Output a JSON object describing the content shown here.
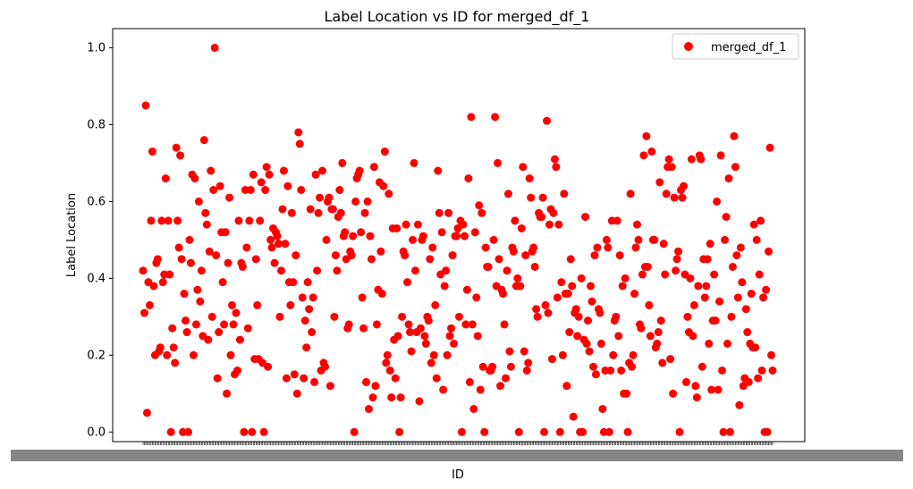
{
  "chart_data": {
    "type": "scatter",
    "title": "Label Location vs ID for merged_df_1",
    "xlabel": "ID",
    "ylabel": "Label Location",
    "ylim": [
      -0.025,
      1.05
    ],
    "yticks": [
      "0.0",
      "0.2",
      "0.4",
      "0.6",
      "0.8",
      "1.0"
    ],
    "grid": false,
    "legend_position": "top-right",
    "point_color": "#ff0000",
    "series": [
      {
        "name": "merged_df_1",
        "y": [
          0.42,
          0.31,
          0.85,
          0.05,
          0.39,
          0.33,
          0.55,
          0.73,
          0.38,
          0.2,
          0.44,
          0.45,
          0.21,
          0.22,
          0.55,
          0.39,
          0.41,
          0.66,
          0.2,
          0.55,
          0.41,
          0.0,
          0.27,
          0.22,
          0.18,
          0.74,
          0.55,
          0.48,
          0.72,
          0.45,
          0.0,
          0.36,
          0.29,
          0.26,
          0.0,
          0.5,
          0.44,
          0.67,
          0.2,
          0.66,
          0.28,
          0.37,
          0.6,
          0.34,
          0.42,
          0.25,
          0.76,
          0.57,
          0.54,
          0.24,
          0.47,
          0.68,
          0.3,
          0.63,
          1.0,
          0.46,
          0.14,
          0.26,
          0.64,
          0.52,
          0.39,
          0.28,
          0.52,
          0.1,
          0.44,
          0.61,
          0.2,
          0.33,
          0.28,
          0.15,
          0.31,
          0.16,
          0.55,
          0.24,
          0.44,
          0.43,
          0.0,
          0.63,
          0.48,
          0.27,
          0.55,
          0.63,
          0.0,
          0.67,
          0.19,
          0.45,
          0.33,
          0.19,
          0.55,
          0.65,
          0.18,
          0.0,
          0.63,
          0.69,
          0.17,
          0.67,
          0.5,
          0.48,
          0.53,
          0.44,
          0.52,
          0.51,
          0.49,
          0.3,
          0.42,
          0.58,
          0.68,
          0.49,
          0.14,
          0.64,
          0.39,
          0.33,
          0.57,
          0.39,
          0.15,
          0.46,
          0.1,
          0.78,
          0.75,
          0.63,
          0.35,
          0.14,
          0.29,
          0.22,
          0.39,
          0.32,
          0.58,
          0.26,
          0.35,
          0.13,
          0.67,
          0.42,
          0.57,
          0.61,
          0.16,
          0.68,
          0.18,
          0.17,
          0.5,
          0.6,
          0.61,
          0.12,
          0.58,
          0.58,
          0.3,
          0.46,
          0.42,
          0.56,
          0.63,
          0.57,
          0.7,
          0.51,
          0.52,
          0.45,
          0.27,
          0.28,
          0.47,
          0.46,
          0.51,
          0.0,
          0.6,
          0.66,
          0.67,
          0.68,
          0.52,
          0.35,
          0.27,
          0.57,
          0.13,
          0.6,
          0.06,
          0.51,
          0.45,
          0.09,
          0.69,
          0.12,
          0.28,
          0.37,
          0.65,
          0.47,
          0.36,
          0.64,
          0.73,
          0.18,
          0.2,
          0.62,
          0.16,
          0.09,
          0.53,
          0.24,
          0.14,
          0.53,
          0.25,
          0.0,
          0.09,
          0.3,
          0.47,
          0.46,
          0.54,
          0.39,
          0.28,
          0.26,
          0.21,
          0.5,
          0.7,
          0.42,
          0.26,
          0.54,
          0.08,
          0.27,
          0.5,
          0.51,
          0.25,
          0.23,
          0.3,
          0.29,
          0.45,
          0.18,
          0.48,
          0.2,
          0.33,
          0.14,
          0.68,
          0.57,
          0.41,
          0.52,
          0.11,
          0.38,
          0.42,
          0.2,
          0.57,
          0.25,
          0.27,
          0.46,
          0.23,
          0.51,
          0.51,
          0.53,
          0.3,
          0.55,
          0.0,
          0.54,
          0.51,
          0.28,
          0.37,
          0.66,
          0.13,
          0.82,
          0.28,
          0.06,
          0.52,
          0.35,
          0.25,
          0.59,
          0.11,
          0.57,
          0.17,
          0.0,
          0.48,
          0.43,
          0.43,
          0.16,
          0.16,
          0.17,
          0.5,
          0.82,
          0.38,
          0.7,
          0.45,
          0.12,
          0.37,
          0.36,
          0.28,
          0.14,
          0.42,
          0.62,
          0.21,
          0.17,
          0.48,
          0.47,
          0.55,
          0.38,
          0.4,
          0.0,
          0.38,
          0.53,
          0.69,
          0.21,
          0.46,
          0.16,
          0.18,
          0.66,
          0.61,
          0.47,
          0.48,
          0.43,
          0.32,
          0.3,
          0.57,
          0.56,
          0.56,
          0.61,
          0.0,
          0.33,
          0.81,
          0.31,
          0.54,
          0.58,
          0.19,
          0.57,
          0.71,
          0.69,
          0.35,
          0.54,
          0.0,
          0.39,
          0.2,
          0.62,
          0.36,
          0.12,
          0.36,
          0.26,
          0.45,
          0.38,
          0.04,
          0.31,
          0.32,
          0.25,
          0.3,
          0.0,
          0.4,
          0.0,
          0.24,
          0.56,
          0.23,
          0.29,
          0.21,
          0.38,
          0.34,
          0.17,
          0.46,
          0.15,
          0.48,
          0.32,
          0.31,
          0.23,
          0.06,
          0.0,
          0.16,
          0.5,
          0.48,
          0.0,
          0.16,
          0.55,
          0.2,
          0.29,
          0.3,
          0.55,
          0.25,
          0.46,
          0.16,
          0.38,
          0.1,
          0.4,
          0.1,
          0.0,
          0.18,
          0.62,
          0.17,
          0.2,
          0.36,
          0.48,
          0.54,
          0.5,
          0.28,
          0.27,
          0.41,
          0.72,
          0.43,
          0.77,
          0.43,
          0.33,
          0.25,
          0.73,
          0.5,
          0.5,
          0.22,
          0.23,
          0.26,
          0.65,
          0.29,
          0.18,
          0.49,
          0.41,
          0.62,
          0.69,
          0.71,
          0.19,
          0.69,
          0.1,
          0.61,
          0.42,
          0.45,
          0.47,
          0.0,
          0.63,
          0.61,
          0.64,
          0.41,
          0.13,
          0.3,
          0.26,
          0.4,
          0.71,
          0.25,
          0.33,
          0.12,
          0.09,
          0.38,
          0.72,
          0.71,
          0.17,
          0.45,
          0.35,
          0.38,
          0.45,
          0.23,
          0.49,
          0.11,
          0.29,
          0.41,
          0.29,
          0.6,
          0.11,
          0.34,
          0.72,
          0.16,
          0.0,
          0.5,
          0.56,
          0.23,
          0.66,
          0.0,
          0.3,
          0.43,
          0.77,
          0.69,
          0.46,
          0.35,
          0.07,
          0.48,
          0.39,
          0.12,
          0.14,
          0.32,
          0.26,
          0.13,
          0.23,
          0.36,
          0.22,
          0.54,
          0.22,
          0.5,
          0.14,
          0.41,
          0.55,
          0.16,
          0.35,
          0.0,
          0.37,
          0.0,
          0.47,
          0.74,
          0.2,
          0.16
        ]
      }
    ]
  }
}
